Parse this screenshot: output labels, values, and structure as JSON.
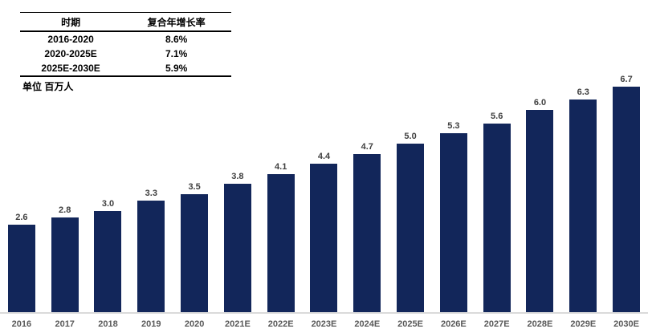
{
  "table": {
    "headers": [
      "时期",
      "复合年增长率"
    ],
    "rows": [
      {
        "period": "2016-2020",
        "cagr": "8.6%"
      },
      {
        "period": "2020-2025E",
        "cagr": "7.1%"
      },
      {
        "period": "2025E-2030E",
        "cagr": "5.9%"
      }
    ]
  },
  "unit_label": "单位 百万人",
  "chart_data": {
    "type": "bar",
    "categories": [
      "2016",
      "2017",
      "2018",
      "2019",
      "2020",
      "2021E",
      "2022E",
      "2023E",
      "2024E",
      "2025E",
      "2026E",
      "2027E",
      "2028E",
      "2029E",
      "2030E"
    ],
    "values": [
      2.6,
      2.8,
      3.0,
      3.3,
      3.5,
      3.8,
      4.1,
      4.4,
      4.7,
      5.0,
      5.3,
      5.6,
      6.0,
      6.3,
      6.7
    ],
    "title": "",
    "xlabel": "",
    "ylabel": "单位 百万人",
    "ylim": [
      0,
      7
    ],
    "grid": false,
    "legend": false,
    "value_labels_shown": true,
    "bar_color": "#12265a",
    "value_label_color": "#3f3f3f",
    "axis_label_color": "#595959",
    "baseline_color": "#dadada"
  },
  "colors": {
    "bar": "#12265a",
    "table_border": "#000000",
    "background": "#ffffff"
  }
}
